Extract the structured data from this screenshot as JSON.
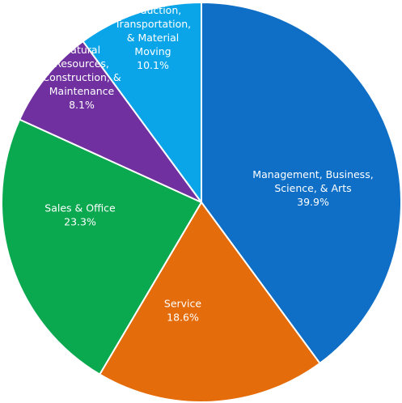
{
  "chart_data": {
    "type": "pie",
    "title": "",
    "slices": [
      {
        "label_lines": [
          "Management, Business,",
          "Science, & Arts"
        ],
        "value_text": "39.9%",
        "value": 39.9,
        "color": "#0f6fc6"
      },
      {
        "label_lines": [
          "Service"
        ],
        "value_text": "18.6%",
        "value": 18.6,
        "color": "#e46c0a"
      },
      {
        "label_lines": [
          "Sales & Office"
        ],
        "value_text": "23.3%",
        "value": 23.3,
        "color": "#0aa84f"
      },
      {
        "label_lines": [
          "Natural",
          "Resources,",
          "Construction, &",
          "Maintenance"
        ],
        "value_text": "8.1%",
        "value": 8.1,
        "color": "#7030a0"
      },
      {
        "label_lines": [
          "Production,",
          "Transportation,",
          "& Material",
          "Moving"
        ],
        "value_text": "10.1%",
        "value": 10.1,
        "color": "#0aa5e8"
      }
    ],
    "start_angle_deg": 0,
    "direction": "clockwise",
    "slice_border_color": "#ffffff"
  }
}
